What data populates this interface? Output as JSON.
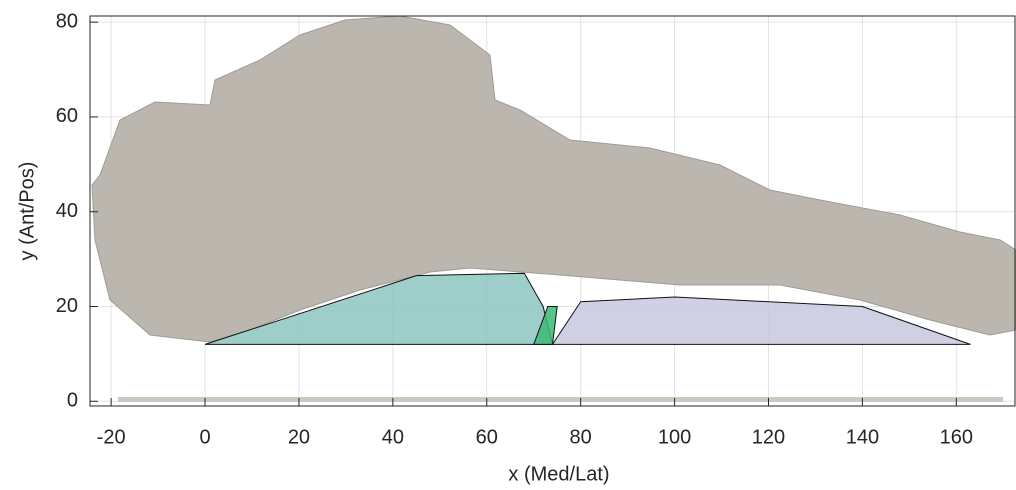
{
  "chart_data": {
    "type": "patch",
    "xlabel": "x (Med/Lat)",
    "ylabel": "y (Ant/Pos)",
    "xlim": [
      -24.5,
      172.5
    ],
    "ylim": [
      -1,
      81.3
    ],
    "xticks": [
      -20,
      0,
      20,
      40,
      60,
      80,
      100,
      120,
      140,
      160
    ],
    "yticks": [
      0,
      20,
      40,
      60,
      80
    ],
    "grid": true,
    "patches": [
      {
        "color": "#8cc5c0",
        "x": [
          0,
          45,
          68,
          72,
          74
        ],
        "y": [
          12,
          26.5,
          27,
          20,
          12
        ]
      },
      {
        "color": "#3cb878",
        "x": [
          70,
          73,
          75,
          74,
          71
        ],
        "y": [
          12,
          20,
          20,
          12,
          12
        ]
      },
      {
        "color": "#c8c8e0",
        "x": [
          74,
          80,
          100,
          140,
          163,
          100
        ],
        "y": [
          12,
          21,
          22,
          20,
          12,
          12
        ]
      }
    ]
  }
}
